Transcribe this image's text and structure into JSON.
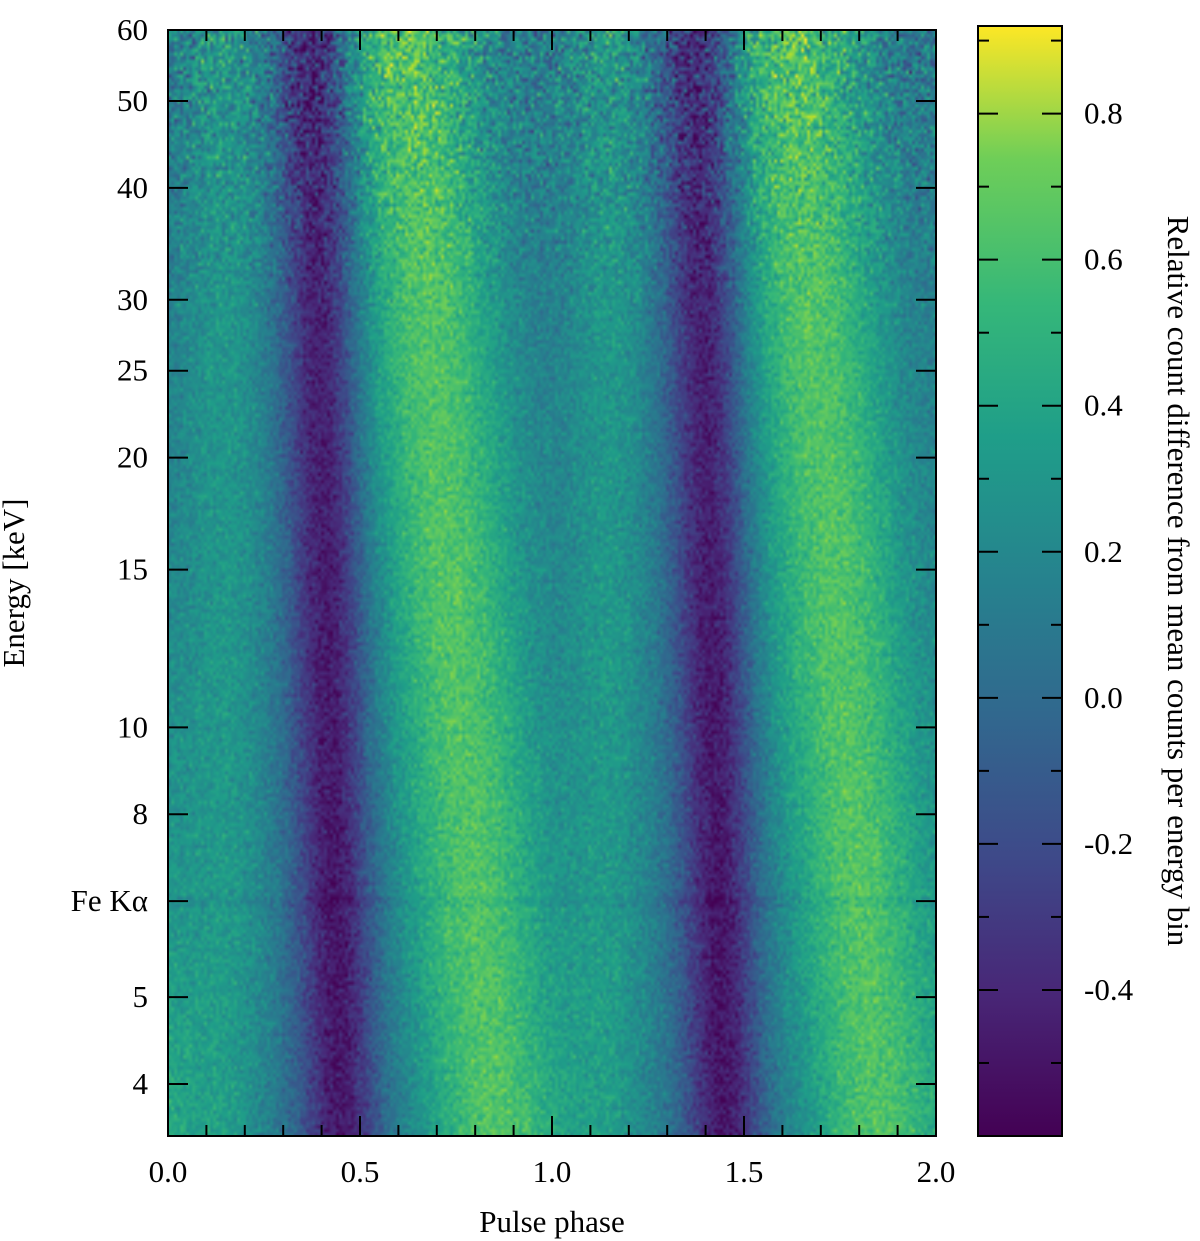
{
  "chart_data": {
    "type": "heatmap",
    "title": "",
    "xlabel": "Pulse phase",
    "ylabel": "Energy [keV]",
    "colorbar_label": "Relative count difference from mean counts per energy bin",
    "x_range": [
      0.0,
      2.0
    ],
    "y_range": [
      3.5,
      60
    ],
    "y_scale": "log",
    "color_range": [
      -0.6,
      0.92
    ],
    "colormap": "viridis",
    "x_ticks": [
      {
        "value": 0.0,
        "label": "0.0"
      },
      {
        "value": 0.5,
        "label": "0.5"
      },
      {
        "value": 1.0,
        "label": "1.0"
      },
      {
        "value": 1.5,
        "label": "1.5"
      },
      {
        "value": 2.0,
        "label": "2.0"
      }
    ],
    "x_minor_step": 0.1,
    "y_ticks": [
      {
        "value": 4,
        "label": "4"
      },
      {
        "value": 5,
        "label": "5"
      },
      {
        "value": 6.4,
        "label": "Fe Kα"
      },
      {
        "value": 8,
        "label": "8"
      },
      {
        "value": 10,
        "label": "10"
      },
      {
        "value": 15,
        "label": "15"
      },
      {
        "value": 20,
        "label": "20"
      },
      {
        "value": 25,
        "label": "25"
      },
      {
        "value": 30,
        "label": "30"
      },
      {
        "value": 40,
        "label": "40"
      },
      {
        "value": 50,
        "label": "50"
      },
      {
        "value": 60,
        "label": "60"
      }
    ],
    "colorbar_ticks": [
      {
        "value": -0.4,
        "label": "-0.4"
      },
      {
        "value": -0.2,
        "label": "-0.2"
      },
      {
        "value": 0.0,
        "label": "0.0"
      },
      {
        "value": 0.2,
        "label": "0.2"
      },
      {
        "value": 0.4,
        "label": "0.4"
      },
      {
        "value": 0.6,
        "label": "0.6"
      },
      {
        "value": 0.8,
        "label": "0.8"
      }
    ],
    "colorbar_minor_step": 0.1,
    "approx_features": {
      "period_in_phase": 1.0,
      "minimum_phase_low_energy": 0.45,
      "minimum_phase_high_energy": 0.38,
      "maximum_phase_low_energy": 0.85,
      "maximum_phase_high_energy": 0.62,
      "secondary_maximum_phase": 0.15,
      "min_value": -0.5,
      "max_value": 0.55,
      "noise_increase_above_keV": 40,
      "fe_line_keV": 6.4
    }
  }
}
